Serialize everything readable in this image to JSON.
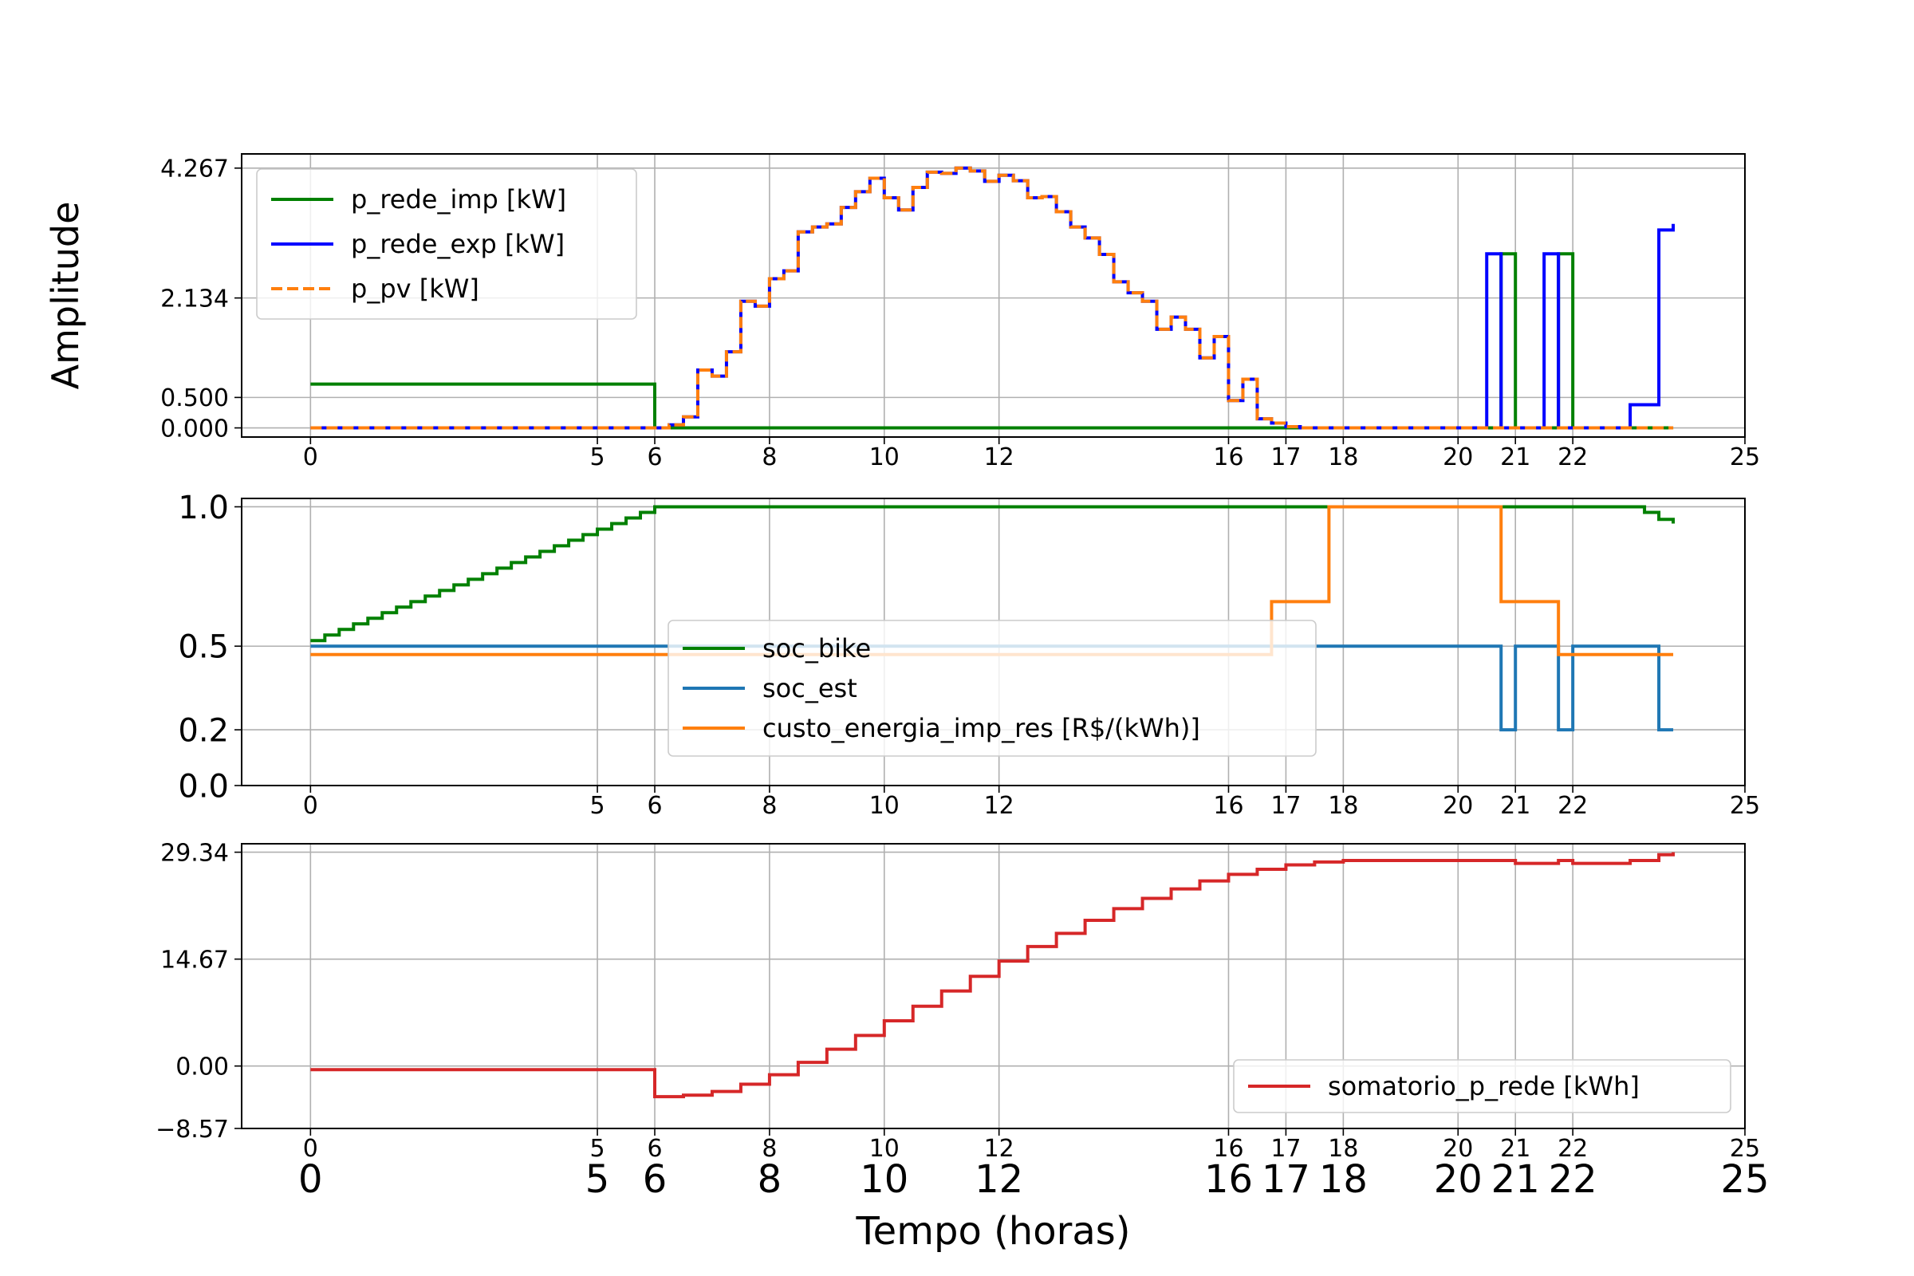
{
  "chart_data": [
    {
      "id": "top",
      "type": "line",
      "step": true,
      "ylabel": "Amplitude",
      "xlim": [
        -1.2,
        25
      ],
      "ylim": [
        -0.15,
        4.5
      ],
      "yticks": [
        0.0,
        0.5,
        2.134,
        4.267
      ],
      "ytick_labels": [
        "0.000",
        "0.500",
        "2.134",
        "4.267"
      ],
      "xticks": [
        0,
        5,
        6,
        8,
        10,
        12,
        16,
        17,
        18,
        20,
        21,
        22,
        25
      ],
      "xtick_labels": [
        "0",
        "5",
        "6",
        "8",
        "10",
        "12",
        "16",
        "17",
        "18",
        "20",
        "21",
        "22",
        "25"
      ],
      "grid": true,
      "legend_position": "top-left",
      "series": [
        {
          "name": "p_rede_imp [kW]",
          "color": "#008000",
          "style": "solid",
          "x": [
            0,
            6,
            6,
            20.75,
            20.75,
            21,
            21,
            21.75,
            21.75,
            22,
            22,
            23.75
          ],
          "y": [
            0.72,
            0.72,
            0.0,
            0.0,
            2.86,
            2.86,
            0.0,
            0.0,
            2.86,
            2.86,
            0.0,
            0.0
          ]
        },
        {
          "name": "p_rede_exp [kW]",
          "color": "#0000ff",
          "style": "solid",
          "x": [
            0,
            6,
            6.25,
            6.5,
            6.75,
            7,
            7.25,
            7.5,
            7.75,
            8,
            8.25,
            8.5,
            8.75,
            9,
            9.25,
            9.5,
            9.75,
            10,
            10.25,
            10.5,
            10.75,
            11,
            11.25,
            11.5,
            11.75,
            12,
            12.25,
            12.5,
            12.75,
            13,
            13.25,
            13.5,
            13.75,
            14,
            14.25,
            14.5,
            14.75,
            15,
            15.25,
            15.5,
            15.75,
            16,
            16.25,
            16.5,
            16.75,
            17,
            17.25,
            17.5,
            17.75,
            18,
            18.25,
            18.5,
            20.5,
            20.5,
            20.75,
            20.75,
            21.5,
            21.5,
            21.75,
            21.75,
            23,
            23,
            23.5,
            23.5,
            23.75
          ],
          "y": [
            0.0,
            0.0,
            0.05,
            0.18,
            0.95,
            0.85,
            1.25,
            2.08,
            2.0,
            2.45,
            2.58,
            3.22,
            3.3,
            3.35,
            3.62,
            3.88,
            4.1,
            3.78,
            3.58,
            3.95,
            4.2,
            4.18,
            4.267,
            4.22,
            4.05,
            4.15,
            4.06,
            3.78,
            3.8,
            3.55,
            3.3,
            3.12,
            2.85,
            2.4,
            2.22,
            2.08,
            1.62,
            1.82,
            1.62,
            1.15,
            1.5,
            0.45,
            0.8,
            0.15,
            0.08,
            0.02,
            0.0,
            0.0,
            0.0,
            0.0,
            0.0,
            0.0,
            0.0,
            2.86,
            2.86,
            0.0,
            0.0,
            2.86,
            2.86,
            0.0,
            0.0,
            0.38,
            0.38,
            3.25,
            3.35
          ]
        },
        {
          "name": "p_pv [kW]",
          "color": "#ff7f0e",
          "style": "dashed",
          "x": [
            0,
            6,
            6.25,
            6.5,
            6.75,
            7,
            7.25,
            7.5,
            7.75,
            8,
            8.25,
            8.5,
            8.75,
            9,
            9.25,
            9.5,
            9.75,
            10,
            10.25,
            10.5,
            10.75,
            11,
            11.25,
            11.5,
            11.75,
            12,
            12.25,
            12.5,
            12.75,
            13,
            13.25,
            13.5,
            13.75,
            14,
            14.25,
            14.5,
            14.75,
            15,
            15.25,
            15.5,
            15.75,
            16,
            16.25,
            16.5,
            16.75,
            17,
            17.25,
            17.5,
            17.75,
            18,
            18.25,
            18.5,
            23.75
          ],
          "y": [
            0.0,
            0.0,
            0.05,
            0.18,
            0.95,
            0.85,
            1.25,
            2.08,
            2.0,
            2.45,
            2.58,
            3.22,
            3.3,
            3.35,
            3.62,
            3.88,
            4.1,
            3.78,
            3.58,
            3.95,
            4.2,
            4.18,
            4.267,
            4.22,
            4.05,
            4.15,
            4.06,
            3.78,
            3.8,
            3.55,
            3.3,
            3.12,
            2.85,
            2.4,
            2.22,
            2.08,
            1.62,
            1.82,
            1.62,
            1.15,
            1.5,
            0.45,
            0.8,
            0.15,
            0.08,
            0.02,
            0.0,
            0.0,
            0.0,
            0.0,
            0.0,
            0.0,
            0.0
          ]
        }
      ]
    },
    {
      "id": "middle",
      "type": "line",
      "step": true,
      "ylabel": "",
      "xlim": [
        -1.2,
        25
      ],
      "ylim": [
        0.0,
        1.03
      ],
      "yticks": [
        0.0,
        0.2,
        0.5,
        1.0
      ],
      "ytick_labels": [
        "0.0",
        "0.2",
        "0.5",
        "1.0"
      ],
      "xticks": [
        0,
        5,
        6,
        8,
        10,
        12,
        16,
        17,
        18,
        20,
        21,
        22,
        25
      ],
      "xtick_labels": [
        "0",
        "5",
        "6",
        "8",
        "10",
        "12",
        "16",
        "17",
        "18",
        "20",
        "21",
        "22",
        "25"
      ],
      "grid": true,
      "legend_position": "center",
      "series": [
        {
          "name": "soc_bike",
          "color": "#008000",
          "style": "solid",
          "x": [
            0,
            0.25,
            0.5,
            0.75,
            1,
            1.25,
            1.5,
            1.75,
            2,
            2.25,
            2.5,
            2.75,
            3,
            3.25,
            3.5,
            3.75,
            4,
            4.25,
            4.5,
            4.75,
            5,
            5.25,
            5.5,
            5.75,
            6,
            23,
            23.25,
            23.5,
            23.75
          ],
          "y": [
            0.52,
            0.54,
            0.56,
            0.58,
            0.6,
            0.62,
            0.64,
            0.66,
            0.68,
            0.7,
            0.72,
            0.74,
            0.76,
            0.78,
            0.8,
            0.82,
            0.84,
            0.86,
            0.88,
            0.9,
            0.92,
            0.94,
            0.96,
            0.98,
            1.0,
            1.0,
            0.98,
            0.955,
            0.94
          ]
        },
        {
          "name": "soc_est",
          "color": "#1f77b4",
          "style": "solid",
          "x": [
            0,
            20.75,
            20.75,
            21,
            21,
            21.75,
            21.75,
            22,
            22,
            23.5,
            23.5,
            23.75
          ],
          "y": [
            0.5,
            0.5,
            0.2,
            0.2,
            0.5,
            0.5,
            0.2,
            0.2,
            0.5,
            0.5,
            0.2,
            0.2
          ]
        },
        {
          "name": "custo_energia_imp_res [R$/(kWh)]",
          "color": "#ff7f0e",
          "style": "solid",
          "x": [
            0,
            16.75,
            16.75,
            17.75,
            17.75,
            20.75,
            20.75,
            21.75,
            21.75,
            23.75
          ],
          "y": [
            0.47,
            0.47,
            0.66,
            0.66,
            1.0,
            1.0,
            0.66,
            0.66,
            0.47,
            0.47
          ]
        }
      ]
    },
    {
      "id": "bottom",
      "type": "line",
      "step": true,
      "ylabel": "",
      "xlabel": "Tempo (horas)",
      "xlim": [
        -1.2,
        25
      ],
      "ylim": [
        -8.57,
        30.5
      ],
      "yticks": [
        -8.57,
        0.0,
        14.67,
        29.34
      ],
      "ytick_labels": [
        "−8.57",
        "0.00",
        "14.67",
        "29.34"
      ],
      "xticks": [
        0,
        5,
        6,
        8,
        10,
        12,
        16,
        17,
        18,
        20,
        21,
        22,
        25
      ],
      "xtick_labels": [
        "0",
        "5",
        "6",
        "8",
        "10",
        "12",
        "16",
        "17",
        "18",
        "20",
        "21",
        "22",
        "25"
      ],
      "bottom_xtick_labels": [
        "0",
        "5",
        "6",
        "8",
        "10",
        "12",
        "16",
        "17",
        "18",
        "20",
        "21",
        "22",
        "25"
      ],
      "grid": true,
      "legend_position": "lower-right",
      "series": [
        {
          "name": "somatorio_p_rede [kWh]",
          "color": "#d62728",
          "style": "solid",
          "x": [
            0,
            6,
            6.5,
            7,
            7.5,
            8,
            8.5,
            9,
            9.5,
            10,
            10.5,
            11,
            11.5,
            12,
            12.5,
            13,
            13.5,
            14,
            14.5,
            15,
            15.5,
            16,
            16.5,
            17,
            17.5,
            18,
            20.75,
            21,
            21.75,
            22,
            23,
            23.5,
            23.75
          ],
          "y": [
            -0.5,
            -4.2,
            -4.0,
            -3.5,
            -2.5,
            -1.2,
            0.5,
            2.3,
            4.2,
            6.2,
            8.2,
            10.3,
            12.3,
            14.4,
            16.4,
            18.2,
            20.0,
            21.6,
            23.0,
            24.3,
            25.4,
            26.3,
            27.0,
            27.6,
            28.0,
            28.2,
            28.2,
            27.8,
            28.2,
            27.8,
            28.2,
            29.0,
            29.34
          ]
        }
      ]
    }
  ]
}
